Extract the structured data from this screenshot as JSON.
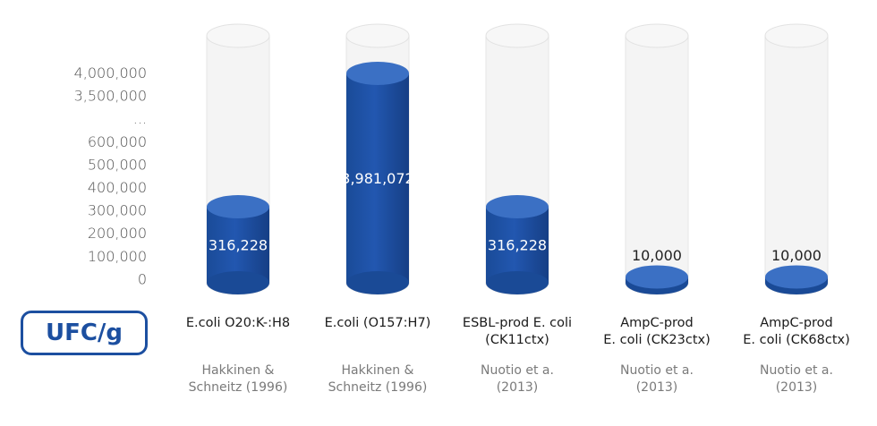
{
  "chart_data": {
    "type": "bar",
    "unit_label": "UFC/g",
    "y_ticks": [
      "4,000,000",
      "3,500,000",
      "...",
      "600,000",
      "500,000",
      "400,000",
      "300,000",
      "200,000",
      "100,000",
      "0"
    ],
    "y_axis_break": true,
    "categories": [
      {
        "name_lines": [
          "E.coli O20:K-:H8"
        ],
        "source_lines": [
          "Hakkinen &",
          "Schneitz (1996)"
        ],
        "value": 316228,
        "value_label": "316,228"
      },
      {
        "name_lines": [
          "E.coli (O157:H7)"
        ],
        "source_lines": [
          "Hakkinen &",
          "Schneitz (1996)"
        ],
        "value": 3981072,
        "value_label": "3,981,072"
      },
      {
        "name_lines": [
          "ESBL-prod E. coli",
          "(CK11ctx)"
        ],
        "source_lines": [
          "Nuotio et a.",
          "(2013)"
        ],
        "value": 316228,
        "value_label": "316,228"
      },
      {
        "name_lines": [
          "AmpC-prod",
          "E. coli (CK23ctx)"
        ],
        "source_lines": [
          "Nuotio et a.",
          "(2013)"
        ],
        "value": 10000,
        "value_label": "10,000"
      },
      {
        "name_lines": [
          "AmpC-prod",
          "E. coli (CK68ctx)"
        ],
        "source_lines": [
          "Nuotio et a.",
          "(2013)"
        ],
        "value": 10000,
        "value_label": "10,000"
      }
    ],
    "colors": {
      "bar": "#1c4fa0",
      "bar_top": "#3f74c6",
      "tube": "#f3f3f3",
      "badge": "#1c4fa0"
    }
  }
}
